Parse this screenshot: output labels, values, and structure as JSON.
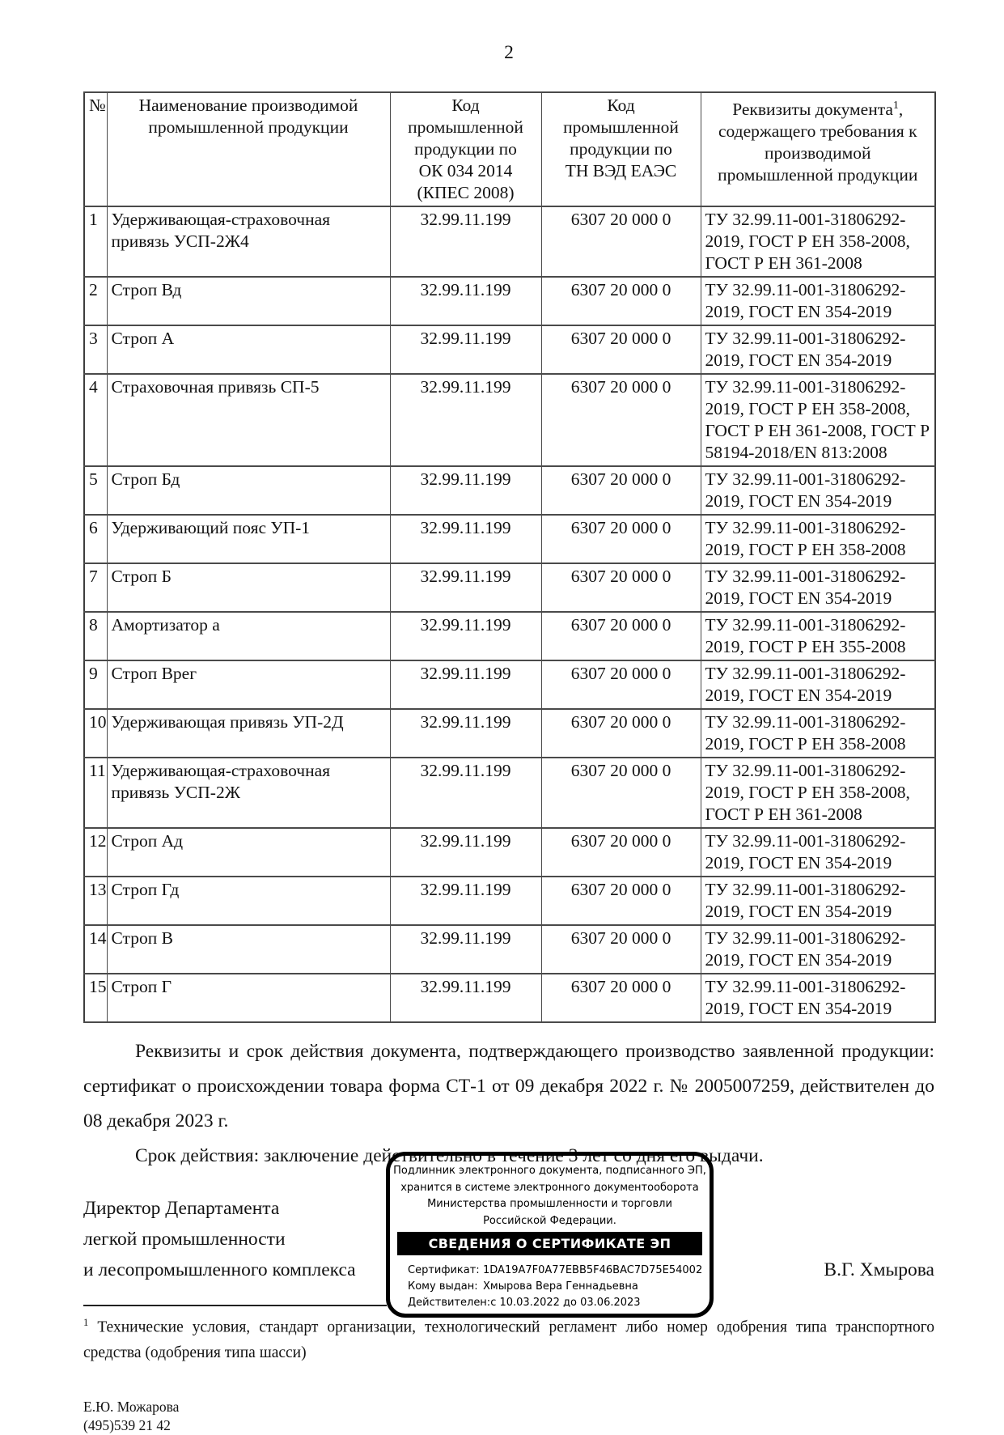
{
  "colors": {
    "page_background": "#ffffff",
    "text": "#121212",
    "table_border": "#4a4a4a",
    "stamp_border": "#000000",
    "stamp_banner_bg": "#000000",
    "stamp_banner_text": "#ffffff"
  },
  "page": {
    "number": "2"
  },
  "table": {
    "headers": {
      "no": "№",
      "name": "Наименование производимой\nпромышленной продукции",
      "code_okpd": "Код\nпромышленной\nпродукции по\nОК 034 2014\n(КПЕС 2008)",
      "code_tnved": "Код\nпромышленной\nпродукции по\nТН ВЭД ЕАЭС",
      "req_pre": "Реквизиты документа",
      "req_sup": "1",
      "req_post": ", содержащего требования к производимой промышленной продукции"
    },
    "rows": [
      {
        "n": "1",
        "name": "Удерживающая-страховочная привязь УСП-2Ж4",
        "code1": "32.99.11.199",
        "code2": "6307 20 000 0",
        "req": "ТУ 32.99.11-001-31806292-2019, ГОСТ Р ЕН 358-2008, ГОСТ Р ЕН 361-2008"
      },
      {
        "n": "2",
        "name": "Строп Вд",
        "code1": "32.99.11.199",
        "code2": "6307 20 000 0",
        "req": "ТУ 32.99.11-001-31806292-2019, ГОСТ EN 354-2019"
      },
      {
        "n": "3",
        "name": "Строп А",
        "code1": "32.99.11.199",
        "code2": "6307 20 000 0",
        "req": "ТУ 32.99.11-001-31806292-2019, ГОСТ EN 354-2019"
      },
      {
        "n": "4",
        "name": "Страховочная привязь СП-5",
        "code1": "32.99.11.199",
        "code2": "6307 20 000 0",
        "req": "ТУ 32.99.11-001-31806292-2019, ГОСТ Р ЕН 358-2008, ГОСТ Р ЕН 361-2008, ГОСТ Р 58194-2018/EN 813:2008"
      },
      {
        "n": "5",
        "name": "Строп Бд",
        "code1": "32.99.11.199",
        "code2": "6307 20 000 0",
        "req": "ТУ 32.99.11-001-31806292-2019, ГОСТ EN 354-2019"
      },
      {
        "n": "6",
        "name": "Удерживающий пояс УП-1",
        "code1": "32.99.11.199",
        "code2": "6307 20 000 0",
        "req": "ТУ 32.99.11-001-31806292-2019, ГОСТ Р ЕН 358-2008"
      },
      {
        "n": "7",
        "name": "Строп Б",
        "code1": "32.99.11.199",
        "code2": "6307 20 000 0",
        "req": "ТУ 32.99.11-001-31806292-2019, ГОСТ EN 354-2019"
      },
      {
        "n": "8",
        "name": "Амортизатор а",
        "code1": "32.99.11.199",
        "code2": "6307 20 000 0",
        "req": "ТУ 32.99.11-001-31806292-2019, ГОСТ Р ЕН 355-2008"
      },
      {
        "n": "9",
        "name": "Строп Врег",
        "code1": "32.99.11.199",
        "code2": "6307 20 000 0",
        "req": "ТУ 32.99.11-001-31806292-2019, ГОСТ EN 354-2019"
      },
      {
        "n": "10",
        "name": "Удерживающая привязь УП-2Д",
        "code1": "32.99.11.199",
        "code2": "6307 20 000 0",
        "req": "ТУ 32.99.11-001-31806292-2019, ГОСТ Р ЕН 358-2008"
      },
      {
        "n": "11",
        "name": "Удерживающая-страховочная привязь УСП-2Ж",
        "code1": "32.99.11.199",
        "code2": "6307 20 000 0",
        "req": "ТУ 32.99.11-001-31806292-2019, ГОСТ Р ЕН 358-2008, ГОСТ Р ЕН 361-2008"
      },
      {
        "n": "12",
        "name": "Строп Ад",
        "code1": "32.99.11.199",
        "code2": "6307 20 000 0",
        "req": "ТУ 32.99.11-001-31806292-2019, ГОСТ EN 354-2019"
      },
      {
        "n": "13",
        "name": "Строп Гд",
        "code1": "32.99.11.199",
        "code2": "6307 20 000 0",
        "req": "ТУ 32.99.11-001-31806292-2019, ГОСТ EN 354-2019"
      },
      {
        "n": "14",
        "name": "Строп В",
        "code1": "32.99.11.199",
        "code2": "6307 20 000 0",
        "req": "ТУ 32.99.11-001-31806292-2019, ГОСТ EN 354-2019"
      },
      {
        "n": "15",
        "name": "Строп Г",
        "code1": "32.99.11.199",
        "code2": "6307 20 000 0",
        "req": "ТУ 32.99.11-001-31806292-2019, ГОСТ EN 354-2019"
      }
    ]
  },
  "paragraphs": {
    "requisites": "Реквизиты и срок действия документа, подтверждающего производство заявленной продукции: сертификат о происхождении товара форма СТ-1 от 09 декабря 2022 г. № 2005007259, действителен до 08 декабря 2023 г.",
    "validity": "Срок действия: заключение действительно в течение 3 лет со дня его выдачи."
  },
  "signature": {
    "title_lines": [
      "Директор Департамента",
      "легкой промышленности",
      "и лесопромышленного комплекса"
    ],
    "name": "В.Г. Хмырова"
  },
  "stamp": {
    "header_lines": [
      "Подлинник электронного документа, подписанного ЭП,",
      "хранится в системе электронного документооборота",
      "Министерства промышленности и торговли",
      "Российской Федерации."
    ],
    "banner": "СВЕДЕНИЯ О СЕРТИФИКАТЕ ЭП",
    "cert": [
      {
        "label": "Сертификат:",
        "value": "1DA19A7F0A77EBB5F46BAC7D75E54002"
      },
      {
        "label": "Кому выдан:",
        "value": "Хмырова Вера Геннадьевна"
      },
      {
        "label": "Действителен:",
        "value": "с 10.03.2022 до 03.06.2023"
      }
    ]
  },
  "footnote": {
    "sup": "1",
    "text": " Технические условия, стандарт организации, технологический регламент либо номер одобрения типа транспортного средства (одобрения типа шасси)"
  },
  "contact": {
    "name": "Е.Ю. Можарова",
    "phone": "(495)539 21 42"
  }
}
